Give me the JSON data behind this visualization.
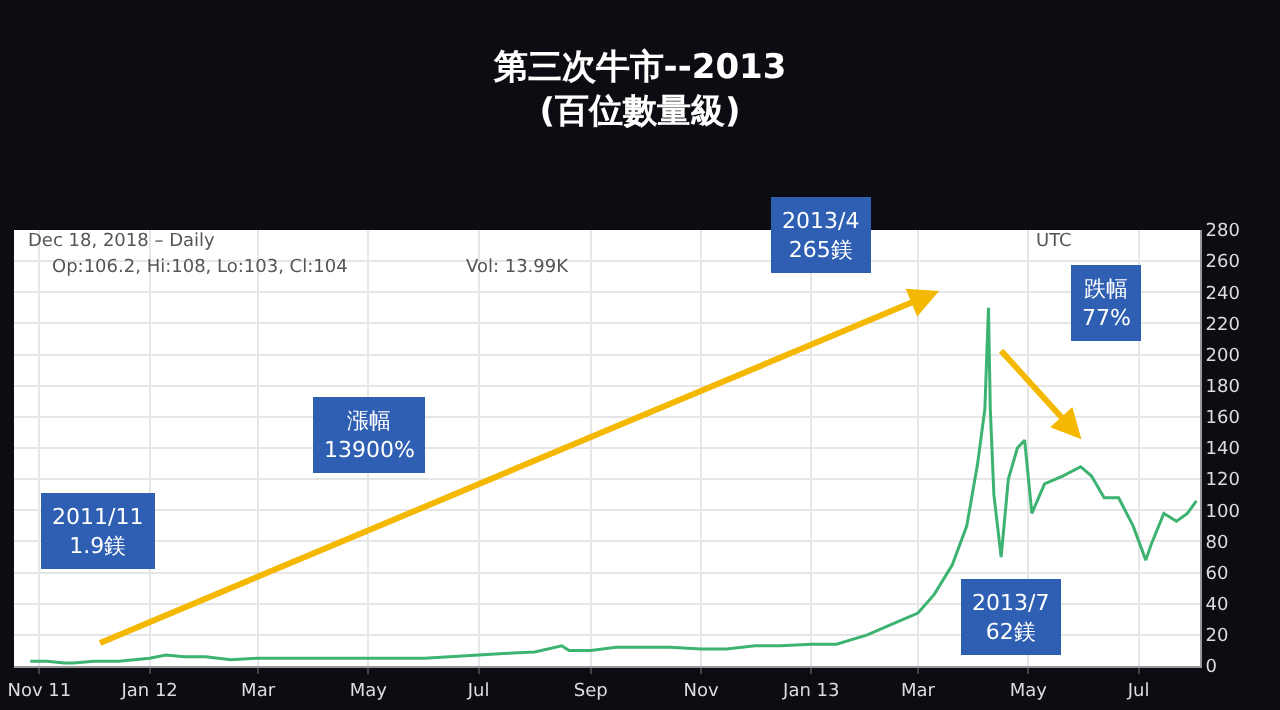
{
  "chart_data": {
    "type": "line",
    "title": "第三次牛市--2013\n(百位數量級)",
    "x": [
      "2011-10-27",
      "2011-11-05",
      "2011-11-15",
      "2011-11-20",
      "2011-12-01",
      "2011-12-15",
      "2012-01-01",
      "2012-01-10",
      "2012-01-20",
      "2012-02-01",
      "2012-02-15",
      "2012-03-01",
      "2012-03-15",
      "2012-04-01",
      "2012-04-15",
      "2012-05-01",
      "2012-05-15",
      "2012-06-01",
      "2012-06-15",
      "2012-07-01",
      "2012-07-15",
      "2012-08-01",
      "2012-08-16",
      "2012-08-20",
      "2012-09-01",
      "2012-09-15",
      "2012-10-01",
      "2012-10-15",
      "2012-11-01",
      "2012-11-15",
      "2012-12-01",
      "2012-12-15",
      "2013-01-01",
      "2013-01-15",
      "2013-02-01",
      "2013-02-15",
      "2013-03-01",
      "2013-03-10",
      "2013-03-20",
      "2013-03-28",
      "2013-04-03",
      "2013-04-07",
      "2013-04-09",
      "2013-04-10",
      "2013-04-12",
      "2013-04-16",
      "2013-04-20",
      "2013-04-25",
      "2013-04-29",
      "2013-05-03",
      "2013-05-10",
      "2013-05-20",
      "2013-05-30",
      "2013-06-05",
      "2013-06-12",
      "2013-06-20",
      "2013-06-28",
      "2013-07-05",
      "2013-07-08",
      "2013-07-15",
      "2013-07-22",
      "2013-07-28",
      "2013-08-02"
    ],
    "series": [
      {
        "color": "#3cb371",
        "values": [
          3,
          3,
          2,
          2,
          3,
          3,
          5,
          7,
          6,
          6,
          4,
          5,
          5,
          5,
          5,
          5,
          5,
          5,
          6,
          7,
          8,
          9,
          13,
          10,
          10,
          12,
          12,
          12,
          11,
          11,
          13,
          13,
          14,
          14,
          20,
          27,
          34,
          46,
          65,
          90,
          130,
          165,
          230,
          165,
          110,
          70,
          120,
          140,
          145,
          98,
          117,
          122,
          128,
          122,
          108,
          108,
          90,
          68,
          78,
          98,
          93,
          98,
          106
        ]
      }
    ],
    "xlim": [
      "2011-10-18",
      "2013-08-04"
    ],
    "xticks": [
      {
        "value": "2011-11-01",
        "label": "Nov 11"
      },
      {
        "value": "2012-01-01",
        "label": "Jan 12"
      },
      {
        "value": "2012-03-01",
        "label": "Mar"
      },
      {
        "value": "2012-05-01",
        "label": "May"
      },
      {
        "value": "2012-07-01",
        "label": "Jul"
      },
      {
        "value": "2012-09-01",
        "label": "Sep"
      },
      {
        "value": "2012-11-01",
        "label": "Nov"
      },
      {
        "value": "2013-01-01",
        "label": "Jan 13"
      },
      {
        "value": "2013-03-01",
        "label": "Mar"
      },
      {
        "value": "2013-05-01",
        "label": "May"
      },
      {
        "value": "2013-07-01",
        "label": "Jul"
      }
    ],
    "ylim": [
      0,
      280
    ],
    "yticks": [
      0,
      20,
      40,
      60,
      80,
      100,
      120,
      140,
      160,
      180,
      200,
      220,
      240,
      260,
      280
    ],
    "grid": true,
    "marker": "none",
    "line_style": "solid",
    "annotations": [
      "Dec 18, 2018 – Daily",
      "Op:106.2, Hi:108, Lo:103, Cl:104",
      "Vol: 13.99K",
      "UTC",
      "2011/11\n1.9鎂",
      "漲幅\n13900%",
      "2013/4\n265鎂",
      "跌幅\n77%",
      "2013/7\n62鎂"
    ]
  }
}
